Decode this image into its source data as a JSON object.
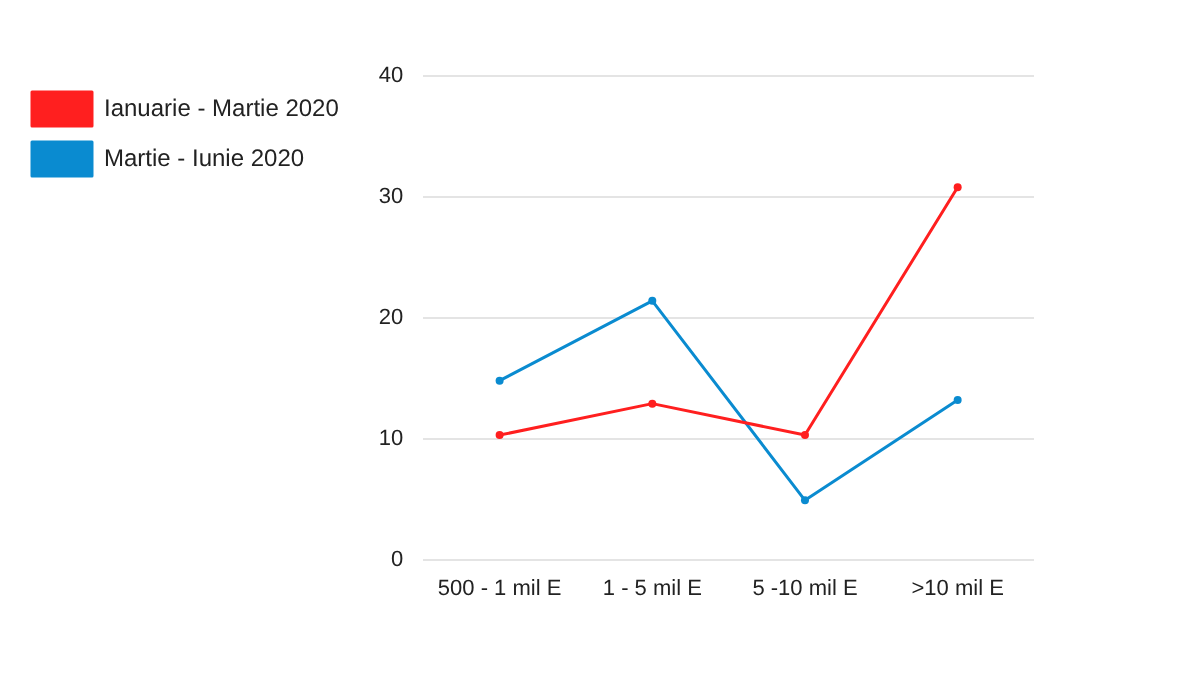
{
  "chart_data": {
    "type": "line",
    "categories": [
      "500 - 1 mil E",
      "1 - 5 mil E",
      "5 -10 mil E",
      ">10 mil E"
    ],
    "series": [
      {
        "name": "Ianuarie - Martie 2020",
        "color": "#ff1f1f",
        "values": [
          10.3,
          12.9,
          10.3,
          30.8
        ]
      },
      {
        "name": "Martie - Iunie 2020",
        "color": "#0a8bd0",
        "values": [
          14.8,
          21.4,
          4.9,
          13.2
        ]
      }
    ],
    "ylim": [
      0,
      40
    ],
    "yticks": [
      0,
      10,
      20,
      30,
      40
    ],
    "grid": "y",
    "legend": "left",
    "marker": "circle",
    "line_style": "solid"
  }
}
